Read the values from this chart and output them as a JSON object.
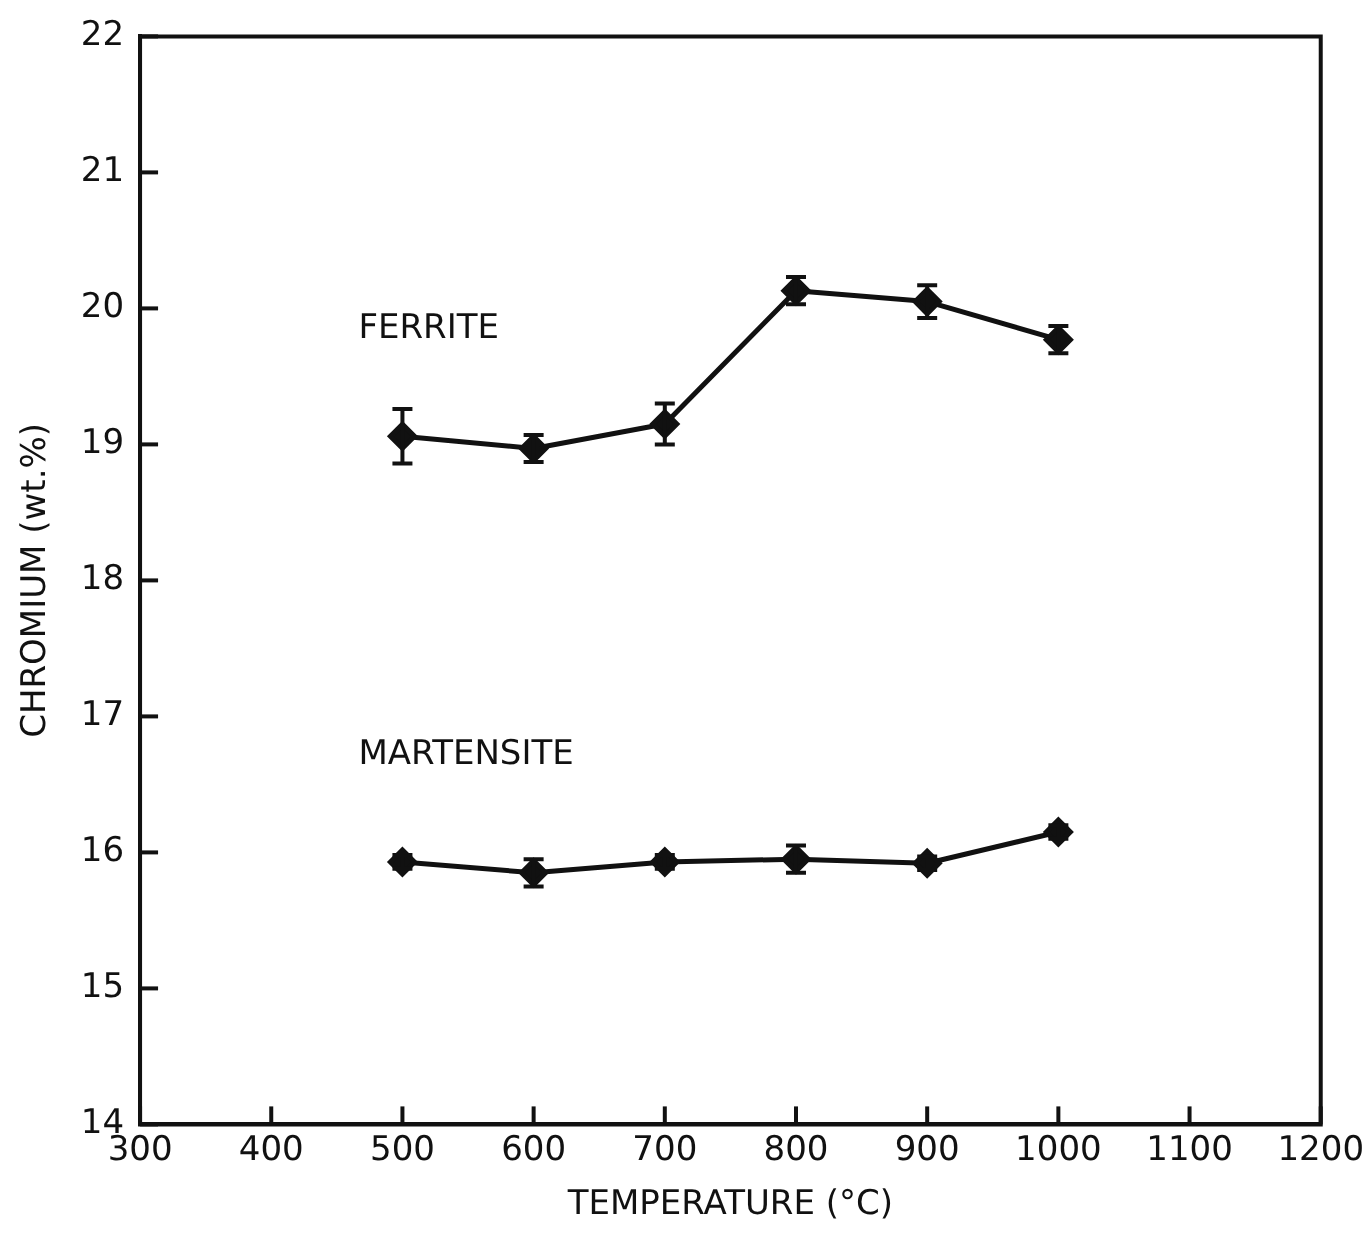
{
  "chart_data": {
    "type": "line",
    "xlabel": "TEMPERATURE (°C)",
    "ylabel": "CHROMIUM (wt.%)",
    "x": [
      500,
      600,
      700,
      800,
      900,
      1000
    ],
    "xlim": [
      300,
      1200
    ],
    "xticks": [
      300,
      400,
      500,
      600,
      700,
      800,
      900,
      1000,
      1100,
      1200
    ],
    "ylim": [
      14,
      22
    ],
    "yticks": [
      14,
      15,
      16,
      17,
      18,
      19,
      20,
      21,
      22
    ],
    "grid": false,
    "legend": false,
    "marker": "diamond",
    "line_style": "solid",
    "series": [
      {
        "name": "FERRITE",
        "color": "#111111",
        "values": [
          19.06,
          18.97,
          19.15,
          20.13,
          20.05,
          19.77
        ],
        "errors": [
          0.2,
          0.1,
          0.15,
          0.1,
          0.12,
          0.1
        ]
      },
      {
        "name": "MARTENSITE",
        "color": "#111111",
        "values": [
          15.93,
          15.85,
          15.93,
          15.95,
          15.92,
          16.15
        ],
        "errors": [
          0.05,
          0.1,
          0.05,
          0.1,
          0.05,
          0.05
        ]
      }
    ]
  }
}
